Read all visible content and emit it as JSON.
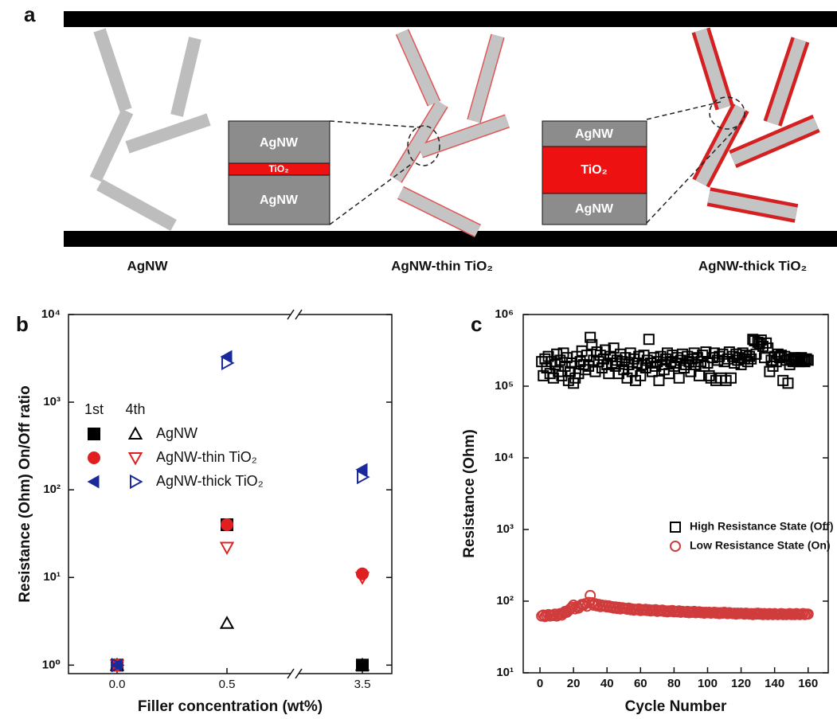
{
  "schematic": {
    "panel_label": "a",
    "labels": [
      "AgNW",
      "AgNW-thin TiO₂",
      "AgNW-thick TiO₂"
    ],
    "left_inset": [
      "AgNW",
      "TiO₂",
      "AgNW"
    ],
    "right_inset": [
      "AgNW",
      "TiO₂",
      "AgNW"
    ]
  },
  "chart_data": [
    {
      "type": "scatter",
      "panel_label": "b",
      "xlabel": "Filler concentration (wt%)",
      "ylabel": "Resistance (Ohm) On/Off ratio",
      "categories": [
        "0.0",
        "0.5",
        "3.5"
      ],
      "x_break": true,
      "log_y": true,
      "ylim": [
        0.8,
        10000
      ],
      "yticks": [
        {
          "value": 1,
          "label": "10⁰"
        },
        {
          "value": 10,
          "label": "10¹"
        },
        {
          "value": 100,
          "label": "10²"
        },
        {
          "value": 1000,
          "label": "10³"
        },
        {
          "value": 10000,
          "label": "10⁴"
        }
      ],
      "legend_columns": [
        "1st",
        "4th"
      ],
      "series": [
        {
          "name": "AgNW",
          "color": "#000000",
          "markers": [
            "square",
            "triangle-up"
          ],
          "values_1st": [
            1,
            40,
            1
          ],
          "values_4th": [
            1,
            3,
            1
          ]
        },
        {
          "name": "AgNW-thin TiO₂",
          "color": "#e02020",
          "markers": [
            "circle",
            "triangle-down"
          ],
          "values_1st": [
            1,
            40,
            11
          ],
          "values_4th": [
            1,
            22,
            10
          ]
        },
        {
          "name": "AgNW-thick TiO₂",
          "color": "#1a2a9a",
          "markers": [
            "triangle-left",
            "triangle-right"
          ],
          "values_1st": [
            1,
            3300,
            170
          ],
          "values_4th": [
            1,
            2800,
            140
          ]
        }
      ]
    },
    {
      "type": "scatter",
      "panel_label": "c",
      "xlabel": "Cycle Number",
      "ylabel": "Resistance (Ohm)",
      "log_y": true,
      "xlim": [
        -10,
        172
      ],
      "xticks": [
        0,
        20,
        40,
        60,
        80,
        100,
        120,
        140,
        160
      ],
      "ylim": [
        10,
        1000000
      ],
      "yticks": [
        {
          "value": 10,
          "label": "10¹"
        },
        {
          "value": 100,
          "label": "10²"
        },
        {
          "value": 1000,
          "label": "10³"
        },
        {
          "value": 10000,
          "label": "10⁴"
        },
        {
          "value": 100000,
          "label": "10⁵"
        },
        {
          "value": 1000000,
          "label": "10⁶"
        }
      ],
      "x": [
        1,
        2,
        3,
        4,
        5,
        6,
        7,
        8,
        9,
        10,
        11,
        12,
        13,
        14,
        15,
        16,
        17,
        18,
        19,
        20,
        21,
        22,
        23,
        24,
        25,
        26,
        27,
        28,
        29,
        30,
        31,
        32,
        33,
        34,
        35,
        36,
        37,
        38,
        39,
        40,
        41,
        42,
        43,
        44,
        45,
        46,
        47,
        48,
        49,
        50,
        51,
        52,
        53,
        54,
        55,
        56,
        57,
        58,
        59,
        60,
        61,
        62,
        63,
        64,
        65,
        66,
        67,
        68,
        69,
        70,
        71,
        72,
        73,
        74,
        75,
        76,
        77,
        78,
        79,
        80,
        81,
        82,
        83,
        84,
        85,
        86,
        87,
        88,
        89,
        90,
        91,
        92,
        93,
        94,
        95,
        96,
        97,
        98,
        99,
        100,
        101,
        102,
        103,
        104,
        105,
        106,
        107,
        108,
        109,
        110,
        111,
        112,
        113,
        114,
        115,
        116,
        117,
        118,
        119,
        120,
        121,
        122,
        123,
        124,
        125,
        126,
        127,
        128,
        129,
        130,
        131,
        132,
        133,
        134,
        135,
        136,
        137,
        138,
        139,
        140,
        141,
        142,
        143,
        144,
        145,
        146,
        147,
        148,
        149,
        150,
        151,
        152,
        153,
        154,
        155,
        156,
        157,
        158,
        159,
        160
      ],
      "series": [
        {
          "name": "High Resistance State (Off)",
          "color": "#000000",
          "marker": "square",
          "values": [
            220000.0,
            140000.0,
            240000.0,
            180000.0,
            260000.0,
            150000.0,
            220000.0,
            130000.0,
            200000.0,
            280000.0,
            160000.0,
            230000.0,
            140000.0,
            290000.0,
            190000.0,
            250000.0,
            120000.0,
            160000.0,
            210000.0,
            110000.0,
            130000.0,
            260000.0,
            150000.0,
            220000.0,
            310000.0,
            200000.0,
            170000.0,
            270000.0,
            190000.0,
            480000.0,
            380000.0,
            230000.0,
            160000.0,
            300000.0,
            220000.0,
            270000.0,
            180000.0,
            240000.0,
            320000.0,
            200000.0,
            150000.0,
            260000.0,
            210000.0,
            340000.0,
            190000.0,
            230000.0,
            150000.0,
            280000.0,
            220000.0,
            170000.0,
            250000.0,
            130000.0,
            200000.0,
            290000.0,
            160000.0,
            240000.0,
            120000.0,
            210000.0,
            260000.0,
            140000.0,
            200000.0,
            270000.0,
            180000.0,
            230000.0,
            450000.0,
            210000.0,
            160000.0,
            250000.0,
            190000.0,
            220000.0,
            120000.0,
            260000.0,
            200000.0,
            170000.0,
            240000.0,
            290000.0,
            150000.0,
            220000.0,
            270000.0,
            190000.0,
            210000.0,
            250000.0,
            130000.0,
            230000.0,
            280000.0,
            180000.0,
            200000.0,
            260000.0,
            220000.0,
            160000.0,
            240000.0,
            290000.0,
            200000.0,
            250000.0,
            140000.0,
            220000.0,
            270000.0,
            190000.0,
            300000.0,
            210000.0,
            140000.0,
            130000.0,
            250000.0,
            290000.0,
            120000.0,
            230000.0,
            260000.0,
            130000.0,
            280000.0,
            220000.0,
            120000.0,
            240000.0,
            300000.0,
            130000.0,
            260000.0,
            210000.0,
            280000.0,
            230000.0,
            250000.0,
            200000.0,
            290000.0,
            240000.0,
            270000.0,
            220000.0,
            260000.0,
            240000.0,
            450000.0,
            430000.0,
            280000.0,
            410000.0,
            390000.0,
            440000.0,
            360000.0,
            250000.0,
            400000.0,
            340000.0,
            160000.0,
            230000.0,
            190000.0,
            260000.0,
            220000.0,
            280000.0,
            250000.0,
            270000.0,
            120000.0,
            260000.0,
            230000.0,
            110000.0,
            200000.0,
            240000.0,
            220000.0,
            250000.0,
            230000.0,
            240000.0,
            220000.0,
            250000.0,
            230000.0,
            220000.0,
            240000.0,
            230000.0
          ]
        },
        {
          "name": "Low Resistance State (On)",
          "color": "#d03c3c",
          "marker": "circle",
          "values": [
            62,
            64,
            61,
            63,
            65,
            62,
            64,
            63,
            66,
            62,
            65,
            67,
            64,
            68,
            72,
            70,
            74,
            78,
            82,
            88,
            78,
            84,
            80,
            86,
            90,
            88,
            92,
            85,
            96,
            120,
            95,
            88,
            92,
            86,
            90,
            84,
            88,
            85,
            87,
            83,
            86,
            82,
            84,
            80,
            83,
            79,
            82,
            78,
            81,
            80,
            79,
            77,
            80,
            76,
            78,
            75,
            77,
            76,
            78,
            74,
            76,
            75,
            77,
            74,
            76,
            73,
            75,
            74,
            76,
            72,
            74,
            73,
            75,
            72,
            73,
            71,
            73,
            72,
            74,
            71,
            72,
            71,
            73,
            70,
            72,
            71,
            70,
            72,
            69,
            71,
            70,
            72,
            69,
            70,
            71,
            69,
            70,
            68,
            70,
            69,
            70,
            68,
            69,
            70,
            68,
            69,
            67,
            69,
            68,
            70,
            68,
            67,
            69,
            68,
            67,
            68,
            66,
            68,
            67,
            68,
            67,
            66,
            68,
            67,
            66,
            67,
            65,
            67,
            66,
            68,
            66,
            67,
            65,
            67,
            66,
            65,
            67,
            66,
            65,
            67,
            66,
            65,
            66,
            67,
            65,
            66,
            65,
            66,
            67,
            65,
            66,
            65,
            67,
            66,
            65,
            66,
            67,
            65,
            66,
            66
          ]
        }
      ]
    }
  ]
}
